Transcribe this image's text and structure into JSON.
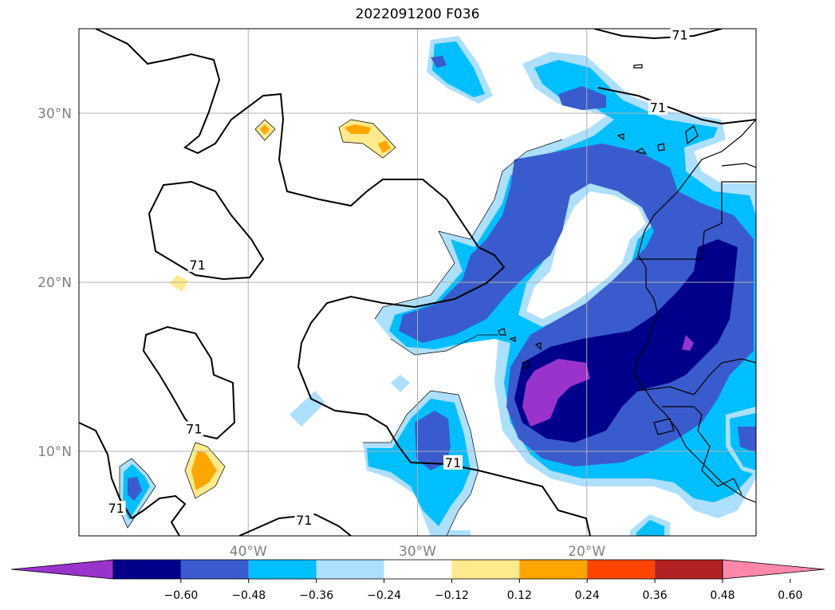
{
  "title": "2022091200 F036",
  "axes": {
    "lon_min": -50,
    "lon_max": -10,
    "lat_min": 5,
    "lat_max": 35,
    "lon_ticks": [
      {
        "value": -40,
        "label": "40°W"
      },
      {
        "value": -30,
        "label": "30°W"
      },
      {
        "value": -20,
        "label": "20°W"
      }
    ],
    "lat_ticks": [
      {
        "value": 30,
        "label": "30°N"
      },
      {
        "value": 20,
        "label": "20°N"
      },
      {
        "value": 10,
        "label": "10°N"
      }
    ],
    "grid": true,
    "tick_label_color": "#808080"
  },
  "contour_labels": [
    {
      "text": "71",
      "lon": -14.5,
      "lat": 34.6
    },
    {
      "text": "71",
      "lon": -15.8,
      "lat": 30.3
    },
    {
      "text": "71",
      "lon": -43.0,
      "lat": 21.0
    },
    {
      "text": "71",
      "lon": -43.2,
      "lat": 11.3
    },
    {
      "text": "71",
      "lon": -27.9,
      "lat": 9.3
    },
    {
      "text": "71",
      "lon": -47.8,
      "lat": 6.6
    },
    {
      "text": "71",
      "lon": -36.7,
      "lat": 5.9
    }
  ],
  "colorbar": {
    "levels": [
      "−0.60",
      "−0.48",
      "−0.36",
      "−0.24",
      "−0.12",
      "0.12",
      "0.24",
      "0.36",
      "0.48",
      "0.60"
    ],
    "colors": [
      "#9933cc",
      "#00008b",
      "#3a5bcd",
      "#00bfff",
      "#addfff",
      "#ffffff",
      "#ffea8c",
      "#ffa500",
      "#ff4500",
      "#b22222",
      "#ff88aa"
    ],
    "extend": "both"
  },
  "field_colors": {
    "lt_m060": "#9933cc",
    "m060_m048": "#00008b",
    "m048_m036": "#3a5bcd",
    "m036_m024": "#00bfff",
    "m024_m012": "#addfff",
    "p012_p024": "#ffea8c",
    "p024_p036": "#ffa500"
  }
}
